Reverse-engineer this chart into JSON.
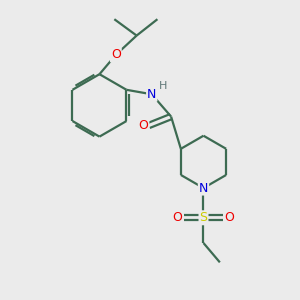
{
  "background_color": "#ebebeb",
  "bond_color": "#3d6b52",
  "atom_colors": {
    "N": "#0000dd",
    "O": "#ee0000",
    "S": "#cccc00",
    "H": "#607878",
    "C": "#3d6b52"
  },
  "figsize": [
    3.0,
    3.0
  ],
  "dpi": 100,
  "bond_lw": 1.6
}
